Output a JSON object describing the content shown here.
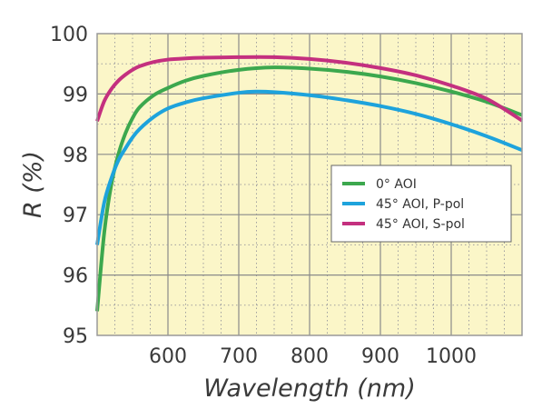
{
  "chart_data": {
    "type": "line",
    "title": "",
    "xlabel": "Wavelength (nm)",
    "ylabel": "R (%)",
    "xlim": [
      500,
      1100
    ],
    "ylim": [
      95,
      100
    ],
    "x_ticks": [
      600,
      700,
      800,
      900,
      1000
    ],
    "x_tick_labels": [
      "600",
      "700",
      "800",
      "900",
      "1000"
    ],
    "y_ticks": [
      95,
      96,
      97,
      98,
      99,
      100
    ],
    "y_tick_labels": [
      "95",
      "96",
      "97",
      "98",
      "99",
      "100"
    ],
    "grid": true,
    "legend_position": "right",
    "background_color": "#fbf6c8",
    "series": [
      {
        "name": "0° AOI",
        "color": "#3ca84e",
        "x": [
          500,
          510,
          520,
          530,
          540,
          550,
          560,
          580,
          600,
          625,
          650,
          700,
          750,
          800,
          850,
          900,
          950,
          1000,
          1050,
          1100
        ],
        "y": [
          95.4,
          96.7,
          97.5,
          98.0,
          98.35,
          98.6,
          98.78,
          98.98,
          99.1,
          99.22,
          99.3,
          99.4,
          99.44,
          99.42,
          99.37,
          99.29,
          99.18,
          99.04,
          98.87,
          98.65
        ]
      },
      {
        "name": "45° AOI, P-pol",
        "color": "#1ea3dc",
        "x": [
          500,
          510,
          520,
          530,
          540,
          550,
          560,
          580,
          600,
          625,
          650,
          700,
          725,
          750,
          800,
          850,
          900,
          950,
          1000,
          1050,
          1100
        ],
        "y": [
          96.5,
          97.2,
          97.6,
          97.9,
          98.1,
          98.28,
          98.42,
          98.62,
          98.76,
          98.86,
          98.93,
          99.02,
          99.04,
          99.03,
          98.98,
          98.9,
          98.8,
          98.67,
          98.5,
          98.3,
          98.07
        ]
      },
      {
        "name": "45° AOI, S-pol",
        "color": "#c4307f",
        "x": [
          500,
          510,
          520,
          530,
          540,
          550,
          560,
          580,
          600,
          625,
          650,
          700,
          750,
          800,
          850,
          900,
          950,
          1000,
          1050,
          1100
        ],
        "y": [
          98.55,
          98.88,
          99.08,
          99.22,
          99.32,
          99.4,
          99.46,
          99.53,
          99.57,
          99.59,
          99.6,
          99.61,
          99.61,
          99.58,
          99.52,
          99.43,
          99.31,
          99.14,
          98.92,
          98.56
        ]
      }
    ]
  }
}
